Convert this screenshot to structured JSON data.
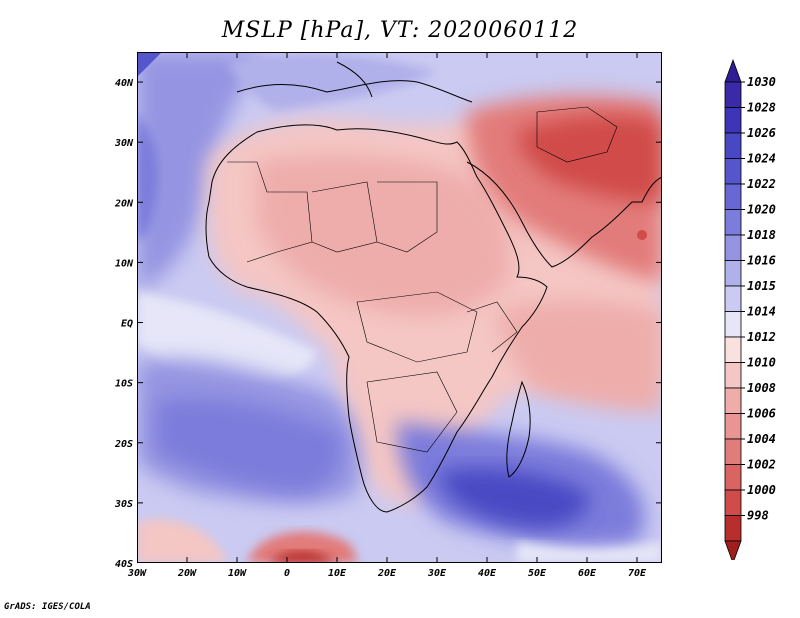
{
  "title": "MSLP [hPa], VT: 2020060112",
  "footer": "GrADS: IGES/COLA",
  "map": {
    "lon_range": [
      -30,
      75
    ],
    "lat_range": [
      -40,
      45
    ],
    "lat_ticks": [
      {
        "value": 40,
        "label": "40N"
      },
      {
        "value": 30,
        "label": "30N"
      },
      {
        "value": 20,
        "label": "20N"
      },
      {
        "value": 10,
        "label": "10N"
      },
      {
        "value": 0,
        "label": "EQ"
      },
      {
        "value": -10,
        "label": "10S"
      },
      {
        "value": -20,
        "label": "20S"
      },
      {
        "value": -30,
        "label": "30S"
      },
      {
        "value": -40,
        "label": "40S"
      }
    ],
    "lon_ticks": [
      {
        "value": -30,
        "label": "30W"
      },
      {
        "value": -20,
        "label": "20W"
      },
      {
        "value": -10,
        "label": "10W"
      },
      {
        "value": 0,
        "label": "0"
      },
      {
        "value": 10,
        "label": "10E"
      },
      {
        "value": 20,
        "label": "20E"
      },
      {
        "value": 30,
        "label": "30E"
      },
      {
        "value": 40,
        "label": "40E"
      },
      {
        "value": 50,
        "label": "50E"
      },
      {
        "value": 60,
        "label": "60E"
      },
      {
        "value": 70,
        "label": "70E"
      }
    ]
  },
  "colorbar": {
    "levels": [
      {
        "label": "1030",
        "color": "#3a2aa8"
      },
      {
        "label": "1028",
        "color": "#3e34b8"
      },
      {
        "label": "1026",
        "color": "#4848c4"
      },
      {
        "label": "1024",
        "color": "#5656cc"
      },
      {
        "label": "1022",
        "color": "#6868d4"
      },
      {
        "label": "1020",
        "color": "#7c7cdc"
      },
      {
        "label": "1018",
        "color": "#9494e2"
      },
      {
        "label": "1016",
        "color": "#b0b0ea"
      },
      {
        "label": "1015",
        "color": "#cacaf2"
      },
      {
        "label": "1014",
        "color": "#e6e6f8"
      },
      {
        "label": "1012",
        "color": "#fbe0e0"
      },
      {
        "label": "1010",
        "color": "#f4c6c4"
      },
      {
        "label": "1008",
        "color": "#eeadab"
      },
      {
        "label": "1006",
        "color": "#e89593"
      },
      {
        "label": "1004",
        "color": "#e27c7a"
      },
      {
        "label": "1002",
        "color": "#da6462"
      },
      {
        "label": "1000",
        "color": "#d04c4a"
      },
      {
        "label": "998",
        "color": "#b82e2c"
      }
    ],
    "top_color": "#2e1e96",
    "bottom_color": "#a01e1e"
  }
}
